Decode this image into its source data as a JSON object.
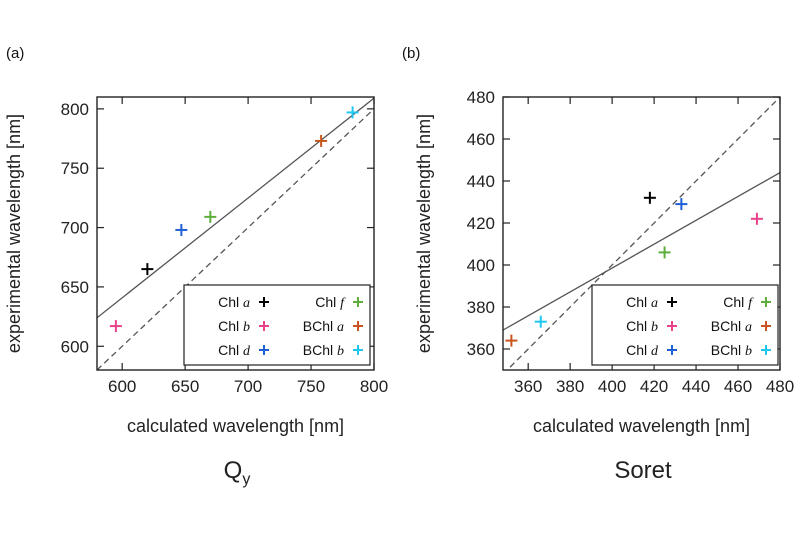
{
  "chart_data": [
    {
      "type": "scatter",
      "panel_label": "(a)",
      "caption": "Qy",
      "caption_main": "Q",
      "caption_sub": "y",
      "xlabel": "calculated wavelength [nm]",
      "ylabel": "experimental wavelength [nm]",
      "xlim": [
        580,
        800
      ],
      "ylim": [
        580,
        810
      ],
      "xticks": [
        600,
        650,
        700,
        750,
        800
      ],
      "yticks": [
        600,
        650,
        700,
        750,
        800
      ],
      "grid": false,
      "legend_position": "bottom-right",
      "series": [
        {
          "name": "Chl a",
          "color": "#000000",
          "x": 620,
          "y": 665
        },
        {
          "name": "Chl b",
          "color": "#e8418a",
          "x": 595,
          "y": 617
        },
        {
          "name": "Chl d",
          "color": "#1f5fd6",
          "x": 647,
          "y": 698
        },
        {
          "name": "Chl f",
          "color": "#5fae3c",
          "x": 670,
          "y": 709
        },
        {
          "name": "BChl a",
          "color": "#c8561c",
          "x": 758,
          "y": 773
        },
        {
          "name": "BChl b",
          "color": "#1fc8f0",
          "x": 783,
          "y": 797
        }
      ],
      "fit_line": {
        "x": [
          580,
          800
        ],
        "y": [
          624,
          809
        ]
      },
      "identity_line": {
        "x": [
          580,
          800
        ],
        "y": [
          580,
          800
        ]
      }
    },
    {
      "type": "scatter",
      "panel_label": "(b)",
      "caption": "Soret",
      "caption_main": "Soret",
      "caption_sub": "",
      "xlabel": "calculated wavelength [nm]",
      "ylabel": "experimental wavelength [nm]",
      "xlim": [
        348,
        480
      ],
      "ylim": [
        350,
        480
      ],
      "xticks": [
        360,
        380,
        400,
        420,
        440,
        460,
        480
      ],
      "yticks": [
        360,
        380,
        400,
        420,
        440,
        460,
        480
      ],
      "grid": false,
      "legend_position": "bottom-right",
      "series": [
        {
          "name": "Chl a",
          "color": "#000000",
          "x": 418,
          "y": 432
        },
        {
          "name": "Chl b",
          "color": "#e8418a",
          "x": 469,
          "y": 422
        },
        {
          "name": "Chl d",
          "color": "#1f5fd6",
          "x": 433,
          "y": 429
        },
        {
          "name": "Chl f",
          "color": "#5fae3c",
          "x": 425,
          "y": 406
        },
        {
          "name": "BChl a",
          "color": "#c8561c",
          "x": 352,
          "y": 364
        },
        {
          "name": "BChl b",
          "color": "#1fc8f0",
          "x": 366,
          "y": 373
        }
      ],
      "fit_line": {
        "x": [
          348,
          480
        ],
        "y": [
          369,
          444
        ]
      },
      "identity_line": {
        "x": [
          348,
          480
        ],
        "y": [
          348,
          480
        ]
      }
    }
  ]
}
